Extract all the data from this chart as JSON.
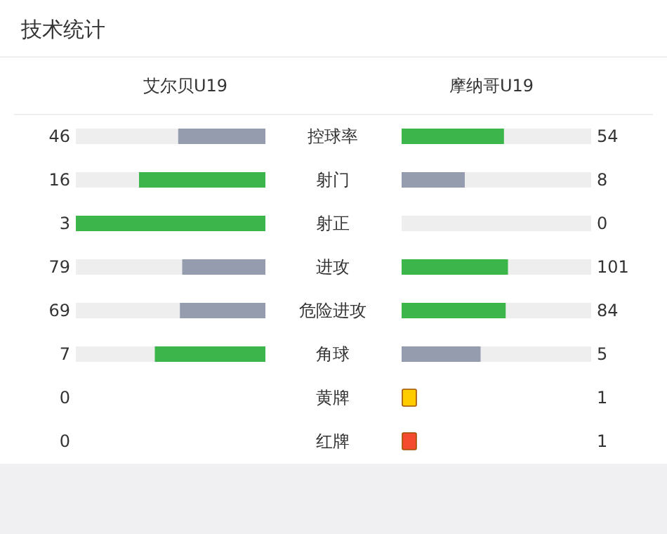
{
  "chart_data": {
    "type": "other",
    "title": "技术统计",
    "data_labels": true,
    "categories": [
      "控球率",
      "射门",
      "射正",
      "进攻",
      "危险进攻",
      "角球",
      "黄牌",
      "红牌"
    ],
    "series": [
      {
        "name": "艾尔贝U19",
        "values": [
          46,
          16,
          3,
          79,
          69,
          7,
          0,
          0
        ],
        "colors": [
          "#949cae",
          "#3cb64a",
          "#3cb64a",
          "#949cae",
          "#949cae",
          "#3cb64a",
          null,
          null
        ]
      },
      {
        "name": "摩纳哥U19",
        "values": [
          54,
          8,
          0,
          101,
          84,
          5,
          1,
          1
        ],
        "colors": [
          "#3cb64a",
          "#949cae",
          "#949cae",
          "#3cb64a",
          "#3cb64a",
          "#949cae",
          "#ffcc00",
          "#f44a2e"
        ]
      }
    ]
  }
}
